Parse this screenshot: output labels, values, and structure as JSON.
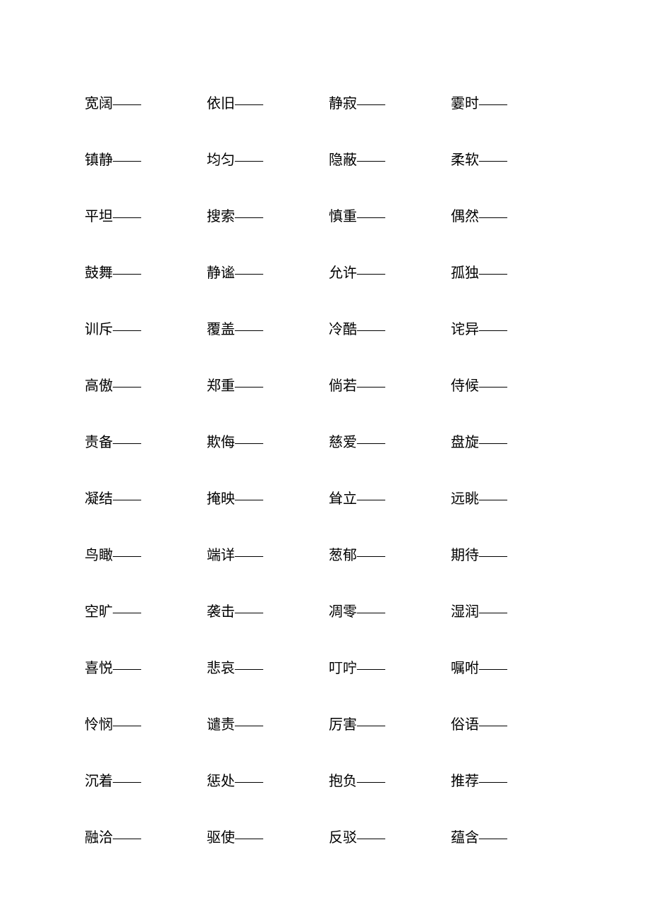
{
  "document": {
    "type": "table",
    "background_color": "#ffffff",
    "text_color": "#000000",
    "font_family": "SimSun",
    "font_size": 20,
    "columns": 4,
    "rows": 14,
    "suffix": "——",
    "words": [
      [
        "宽阔",
        "依旧",
        "静寂",
        "霎时"
      ],
      [
        "镇静",
        "均匀",
        "隐蔽",
        "柔软"
      ],
      [
        "平坦",
        "搜索",
        "慎重",
        "偶然"
      ],
      [
        "鼓舞",
        "静谧",
        "允许",
        "孤独"
      ],
      [
        "训斥",
        "覆盖",
        "冷酷",
        "诧异"
      ],
      [
        "高傲",
        "郑重",
        "倘若",
        "侍候"
      ],
      [
        "责备",
        "欺侮",
        "慈爱",
        "盘旋"
      ],
      [
        "凝结",
        "掩映",
        "耸立",
        "远眺"
      ],
      [
        "鸟瞰",
        "端详",
        "葱郁",
        "期待"
      ],
      [
        "空旷",
        "袭击",
        "凋零",
        "湿润"
      ],
      [
        "喜悦",
        "悲哀",
        "叮咛",
        "嘱咐"
      ],
      [
        "怜悯",
        "谴责",
        "厉害",
        "俗语"
      ],
      [
        "沉着",
        "惩处",
        "抱负",
        "推荐"
      ],
      [
        "融洽",
        "驱使",
        "反驳",
        "蕴含"
      ]
    ]
  }
}
